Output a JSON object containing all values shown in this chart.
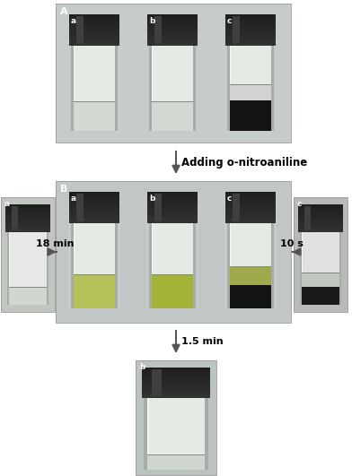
{
  "fig_width": 3.92,
  "fig_height": 5.31,
  "dpi": 100,
  "bg_color": "#ffffff",
  "arrow_color": "#555555",
  "arrow_text_color": "#000000",
  "text_adding": "Adding o-nitroaniline",
  "text_18min": "18 min",
  "text_10s": "10 s",
  "text_15min": "1.5 min",
  "label_A": "A",
  "label_B": "B",
  "label_a": "a",
  "label_b": "b",
  "label_c": "c"
}
